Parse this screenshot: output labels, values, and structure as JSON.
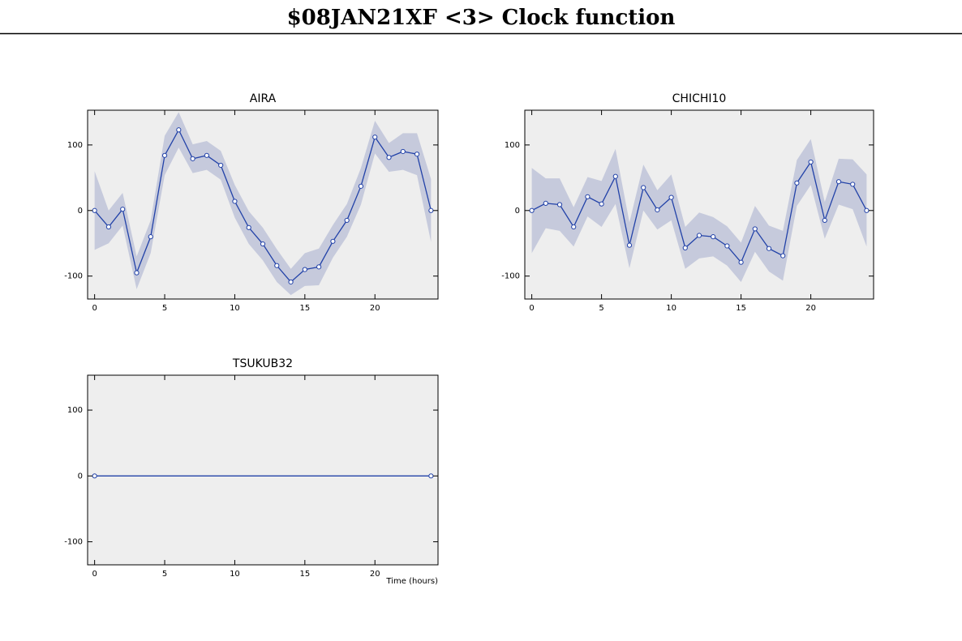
{
  "title": "$08JAN21XF <3>  Clock function",
  "chart_data": [
    {
      "type": "line",
      "title": "AIRA",
      "x": [
        0,
        1,
        2,
        3,
        4,
        5,
        6,
        7,
        8,
        9,
        10,
        11,
        12,
        13,
        14,
        15,
        16,
        17,
        18,
        19,
        20,
        21,
        22,
        23,
        24
      ],
      "series": [
        {
          "color": "#2242a8",
          "band_color": "#c6cadc",
          "values": [
            0,
            -25,
            2,
            -95,
            -40,
            84,
            123,
            79,
            84,
            69,
            14,
            -26,
            -51,
            -84,
            -109,
            -90,
            -86,
            -47,
            -15,
            37,
            112,
            81,
            90,
            86,
            0
          ],
          "errors": [
            60,
            25,
            25,
            25,
            25,
            30,
            27,
            22,
            22,
            22,
            25,
            25,
            25,
            25,
            20,
            25,
            28,
            25,
            25,
            28,
            25,
            22,
            28,
            32,
            48
          ]
        }
      ],
      "xlim": [
        -0.5,
        24.5
      ],
      "xticks": [
        0,
        5,
        10,
        15,
        20
      ],
      "ylim": [
        -135,
        153
      ],
      "yticks": [
        -100,
        0,
        100
      ]
    },
    {
      "type": "line",
      "title": "CHICHI10",
      "x": [
        0,
        1,
        2,
        3,
        4,
        5,
        6,
        7,
        8,
        9,
        10,
        11,
        12,
        13,
        14,
        15,
        16,
        17,
        18,
        19,
        20,
        21,
        22,
        23,
        24
      ],
      "series": [
        {
          "color": "#2242a8",
          "band_color": "#c6cadc",
          "values": [
            0,
            11,
            9,
            -25,
            21,
            10,
            52,
            -53,
            35,
            1,
            20,
            -57,
            -38,
            -40,
            -54,
            -79,
            -28,
            -58,
            -69,
            42,
            74,
            -15,
            44,
            40,
            0
          ],
          "errors": [
            65,
            38,
            40,
            30,
            30,
            35,
            42,
            35,
            35,
            30,
            35,
            32,
            35,
            30,
            30,
            30,
            35,
            35,
            38,
            35,
            35,
            28,
            35,
            38,
            55
          ]
        }
      ],
      "xlim": [
        -0.5,
        24.5
      ],
      "xticks": [
        0,
        5,
        10,
        15,
        20
      ],
      "ylim": [
        -135,
        153
      ],
      "yticks": [
        -100,
        0,
        100
      ]
    },
    {
      "type": "line",
      "title": "TSUKUB32",
      "xlabel": "Time (hours)",
      "x": [
        0,
        24
      ],
      "series": [
        {
          "color": "#2242a8",
          "band_color": "#c6cadc",
          "values": [
            0,
            0
          ],
          "errors": [
            0,
            0
          ]
        }
      ],
      "xlim": [
        -0.5,
        24.5
      ],
      "xticks": [
        0,
        5,
        10,
        15,
        20
      ],
      "ylim": [
        -135,
        153
      ],
      "yticks": [
        -100,
        0,
        100
      ]
    }
  ]
}
